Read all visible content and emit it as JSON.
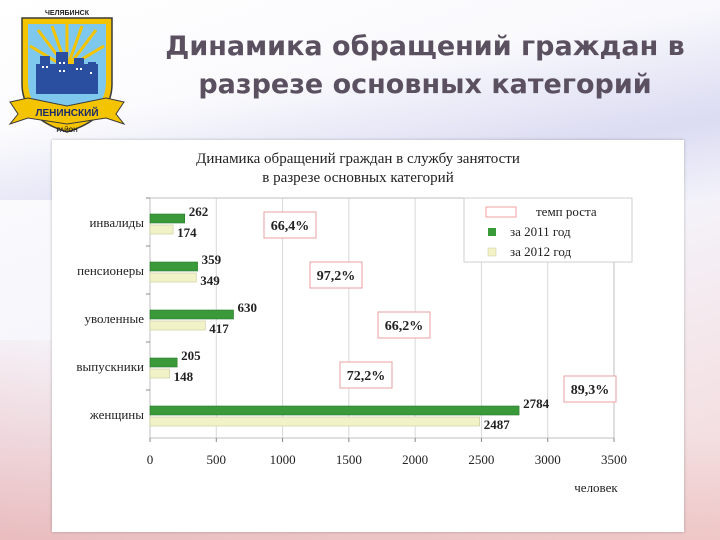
{
  "emblem": {
    "top_text": "ЧЕЛЯБИНСК",
    "ribbon_text": "ЛЕНИНСКИЙ",
    "bottom_text": "РАЙОН"
  },
  "header": {
    "title_line1": "Динамика обращений граждан в",
    "title_line2": "разрезе основных категорий"
  },
  "chart_data": {
    "type": "bar",
    "orientation": "horizontal",
    "title_line1": "Динамика обращений граждан в службу занятости",
    "title_line2": "в разрезе основных категорий",
    "categories": [
      "инвалиды",
      "пенсионеры",
      "уволенные",
      "выпускники",
      "женщины"
    ],
    "series": [
      {
        "name": "за 2011 год",
        "color": "#3a9a3a",
        "values": [
          262,
          359,
          630,
          205,
          2784
        ]
      },
      {
        "name": "за 2012 год",
        "color": "#f2f2c8",
        "values": [
          174,
          349,
          417,
          148,
          2487
        ]
      }
    ],
    "growth_rate": {
      "name": "темп роста",
      "values": [
        "66,4%",
        "97,2%",
        "66,2%",
        "72,2%",
        "89,3%"
      ]
    },
    "xlabel": "человек",
    "xlim": [
      0,
      3500
    ],
    "xticks": [
      0,
      500,
      1000,
      1500,
      2000,
      2500,
      3000,
      3500
    ],
    "legend_position": "top-right",
    "grid": true
  }
}
